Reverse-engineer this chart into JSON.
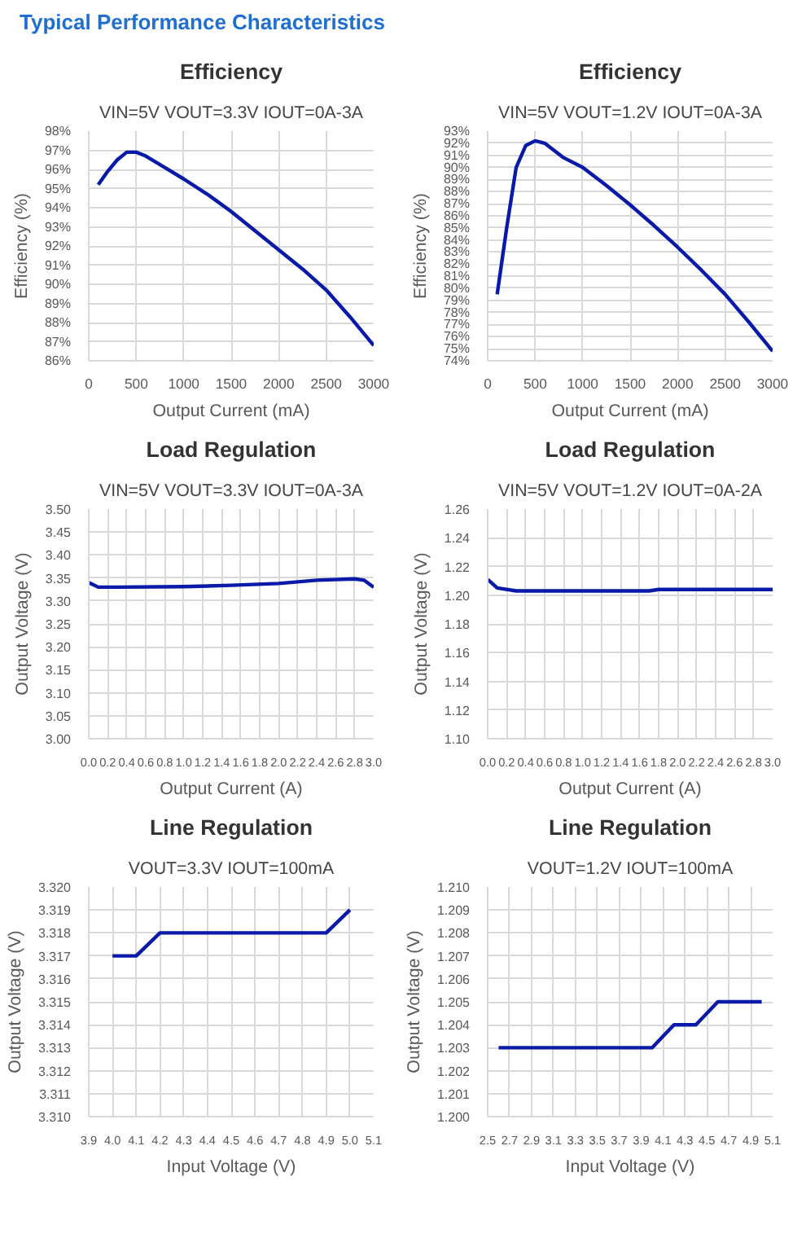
{
  "chart_data": [
    {
      "type": "line",
      "title": "Efficiency",
      "subtitle": "VIN=5V VOUT=3.3V IOUT=0A-3A",
      "xlabel": "Output Current (mA)",
      "ylabel": "Efficiency (%)",
      "annotations": [
        "Typical Performance Characteristics"
      ],
      "grid": true,
      "marker": "none",
      "line_style": "solid",
      "xlim": [
        0,
        3000
      ],
      "xticks": [
        0,
        500,
        1000,
        1500,
        2000,
        2500,
        3000
      ],
      "ylim": [
        86,
        98
      ],
      "yticks": [
        {
          "value": 86,
          "label": "86%"
        },
        {
          "value": 87,
          "label": "87%"
        },
        {
          "value": 88,
          "label": "88%"
        },
        {
          "value": 89,
          "label": "89%"
        },
        {
          "value": 90,
          "label": "90%"
        },
        {
          "value": 91,
          "label": "91%"
        },
        {
          "value": 92,
          "label": "92%"
        },
        {
          "value": 93,
          "label": "93%"
        },
        {
          "value": 94,
          "label": "94%"
        },
        {
          "value": 95,
          "label": "95%"
        },
        {
          "value": 96,
          "label": "96%"
        },
        {
          "value": 97,
          "label": "97%"
        },
        {
          "value": 98,
          "label": "98%"
        }
      ],
      "x": [
        100,
        200,
        300,
        400,
        500,
        600,
        800,
        1000,
        1250,
        1500,
        1750,
        2000,
        2250,
        2500,
        2750,
        3000
      ],
      "series": [
        {
          "color": "#0a1aa8",
          "values": [
            95.2,
            95.9,
            96.5,
            96.9,
            96.9,
            96.7,
            96.1,
            95.5,
            94.7,
            93.8,
            92.8,
            91.8,
            90.8,
            89.7,
            88.3,
            86.8
          ]
        }
      ]
    },
    {
      "type": "line",
      "title": "Efficiency",
      "subtitle": "VIN=5V VOUT=1.2V IOUT=0A-3A",
      "xlabel": "Output Current (mA)",
      "ylabel": "Efficiency (%)",
      "grid": true,
      "marker": "none",
      "line_style": "solid",
      "xlim": [
        0,
        3000
      ],
      "xticks": [
        0,
        500,
        1000,
        1500,
        2000,
        2500,
        3000
      ],
      "ylim": [
        74,
        93
      ],
      "yticks": [
        {
          "value": 74,
          "label": "74%"
        },
        {
          "value": 75,
          "label": "75%"
        },
        {
          "value": 76,
          "label": "76%"
        },
        {
          "value": 77,
          "label": "77%"
        },
        {
          "value": 78,
          "label": "78%"
        },
        {
          "value": 79,
          "label": "79%"
        },
        {
          "value": 80,
          "label": "80%"
        },
        {
          "value": 81,
          "label": "81%"
        },
        {
          "value": 82,
          "label": "82%"
        },
        {
          "value": 83,
          "label": "83%"
        },
        {
          "value": 84,
          "label": "84%"
        },
        {
          "value": 85,
          "label": "85%"
        },
        {
          "value": 86,
          "label": "86%"
        },
        {
          "value": 87,
          "label": "87%"
        },
        {
          "value": 88,
          "label": "88%"
        },
        {
          "value": 89,
          "label": "89%"
        },
        {
          "value": 90,
          "label": "90%"
        },
        {
          "value": 91,
          "label": "91%"
        },
        {
          "value": 92,
          "label": "92%"
        },
        {
          "value": 93,
          "label": "93%"
        }
      ],
      "x": [
        100,
        200,
        300,
        400,
        500,
        600,
        700,
        800,
        1000,
        1250,
        1500,
        1750,
        2000,
        2250,
        2500,
        2750,
        3000
      ],
      "series": [
        {
          "color": "#0a1aa8",
          "values": [
            79.5,
            85,
            90,
            91.8,
            92.2,
            92,
            91.4,
            90.8,
            90,
            88.5,
            86.9,
            85.2,
            83.4,
            81.5,
            79.5,
            77.2,
            74.8
          ]
        }
      ]
    },
    {
      "type": "line",
      "title": "Load Regulation",
      "subtitle": "VIN=5V VOUT=3.3V IOUT=0A-3A",
      "xlabel": "Output Current (A)",
      "ylabel": "Output Voltage (V)",
      "grid": true,
      "marker": "none",
      "line_style": "solid",
      "xlim": [
        0,
        3
      ],
      "xticks": [
        {
          "value": 0,
          "label": "0.0"
        },
        0.2,
        0.4,
        0.6,
        0.8,
        {
          "value": 1,
          "label": "1.0"
        },
        1.2,
        1.4,
        1.6,
        1.8,
        {
          "value": 2,
          "label": "2.0"
        },
        2.2,
        2.4,
        2.6,
        2.8,
        {
          "value": 3,
          "label": "3.0"
        }
      ],
      "ylim": [
        3.0,
        3.5
      ],
      "yticks": [
        {
          "value": 3.0,
          "label": "3.00"
        },
        3.05,
        {
          "value": 3.1,
          "label": "3.10"
        },
        3.15,
        {
          "value": 3.2,
          "label": "3.20"
        },
        3.25,
        {
          "value": 3.3,
          "label": "3.30"
        },
        3.35,
        {
          "value": 3.4,
          "label": "3.40"
        },
        3.45,
        {
          "value": 3.5,
          "label": "3.50"
        }
      ],
      "x": [
        0,
        0.1,
        0.3,
        1.0,
        1.5,
        2.0,
        2.4,
        2.8,
        2.9,
        3.0
      ],
      "series": [
        {
          "color": "#0a1aa8",
          "values": [
            3.34,
            3.33,
            3.33,
            3.331,
            3.334,
            3.338,
            3.345,
            3.348,
            3.345,
            3.33
          ]
        }
      ]
    },
    {
      "type": "line",
      "title": "Load Regulation",
      "subtitle": "VIN=5V VOUT=1.2V IOUT=0A-2A",
      "xlabel": "Output Current (A)",
      "ylabel": "Output Voltage (V)",
      "grid": true,
      "marker": "none",
      "line_style": "solid",
      "xlim": [
        0,
        3
      ],
      "xticks": [
        {
          "value": 0,
          "label": "0.0"
        },
        0.2,
        0.4,
        0.6,
        0.8,
        {
          "value": 1,
          "label": "1.0"
        },
        1.2,
        1.4,
        1.6,
        1.8,
        {
          "value": 2,
          "label": "2.0"
        },
        2.2,
        2.4,
        2.6,
        2.8,
        {
          "value": 3,
          "label": "3.0"
        }
      ],
      "ylim": [
        1.1,
        1.26
      ],
      "yticks": [
        {
          "value": 1.1,
          "label": "1.10"
        },
        1.12,
        1.14,
        1.16,
        1.18,
        {
          "value": 1.2,
          "label": "1.20"
        },
        1.22,
        1.24,
        1.26
      ],
      "x": [
        0,
        0.1,
        0.3,
        1.7,
        1.8,
        3.0
      ],
      "series": [
        {
          "color": "#0a1aa8",
          "values": [
            1.211,
            1.205,
            1.203,
            1.203,
            1.204,
            1.204
          ]
        }
      ]
    },
    {
      "type": "line",
      "title": "Line Regulation",
      "subtitle": "VOUT=3.3V IOUT=100mA",
      "xlabel": "Input Voltage (V)",
      "ylabel": "Output Voltage (V)",
      "grid": true,
      "marker": "none",
      "line_style": "solid",
      "xlim": [
        3.9,
        5.1
      ],
      "xticks": [
        3.9,
        {
          "value": 4.0,
          "label": "4.0"
        },
        4.1,
        4.2,
        4.3,
        4.4,
        4.5,
        4.6,
        4.7,
        4.8,
        4.9,
        {
          "value": 5.0,
          "label": "5.0"
        },
        5.1
      ],
      "ylim": [
        3.31,
        3.32
      ],
      "yticks": [
        {
          "value": 3.31,
          "label": "3.310"
        },
        3.311,
        3.312,
        3.313,
        3.314,
        3.315,
        3.316,
        3.317,
        3.318,
        3.319,
        {
          "value": 3.32,
          "label": "3.320"
        }
      ],
      "x": [
        4.0,
        4.1,
        4.2,
        4.3,
        4.8,
        4.9,
        5.0
      ],
      "series": [
        {
          "color": "#0a1aa8",
          "values": [
            3.317,
            3.317,
            3.318,
            3.318,
            3.318,
            3.318,
            3.319
          ]
        }
      ]
    },
    {
      "type": "line",
      "title": "Line Regulation",
      "subtitle": "VOUT=1.2V IOUT=100mA",
      "xlabel": "Input Voltage (V)",
      "ylabel": "Output Voltage (V)",
      "grid": true,
      "marker": "none",
      "line_style": "solid",
      "xlim": [
        2.5,
        5.1
      ],
      "xticks": [
        2.5,
        2.7,
        2.9,
        3.1,
        3.3,
        3.5,
        3.7,
        3.9,
        4.1,
        4.3,
        4.5,
        4.7,
        4.9,
        5.1
      ],
      "ylim": [
        1.2,
        1.21
      ],
      "yticks": [
        {
          "value": 1.2,
          "label": "1.200"
        },
        1.201,
        1.202,
        1.203,
        1.204,
        1.205,
        1.206,
        1.207,
        1.208,
        1.209,
        {
          "value": 1.21,
          "label": "1.210"
        }
      ],
      "x": [
        2.6,
        3.9,
        4.0,
        4.2,
        4.3,
        4.4,
        4.6,
        5.0
      ],
      "series": [
        {
          "color": "#0a1aa8",
          "values": [
            1.203,
            1.203,
            1.203,
            1.204,
            1.204,
            1.204,
            1.205,
            1.205
          ]
        }
      ]
    }
  ]
}
